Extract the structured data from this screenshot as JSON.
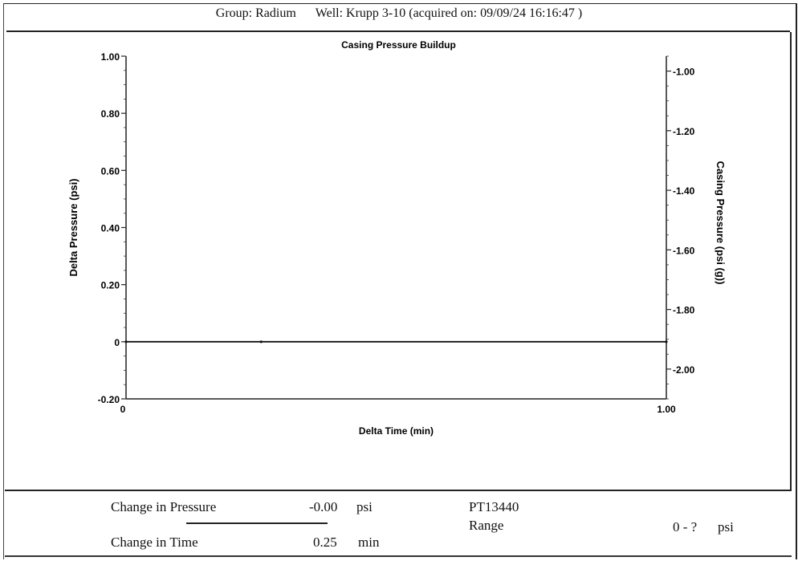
{
  "header": {
    "group": "Group: Radium",
    "well": "Well: Krupp 3-10 (acquired on: 09/09/24 16:16:47 )"
  },
  "chart_data": {
    "type": "line",
    "title": "Casing Pressure Buildup",
    "xlabel": "Delta Time (min)",
    "ylabel": "Delta Pressure (psi)",
    "y2label": "Casing Pressure (psi (g))",
    "xlim": [
      0,
      1.0
    ],
    "ylim": [
      -0.2,
      1.0
    ],
    "y2lim": [
      -2.1,
      -0.95
    ],
    "x_ticks": [
      "0",
      "1.00"
    ],
    "y_ticks": [
      {
        "value": 1.0,
        "label": "1.00"
      },
      {
        "value": 0.8,
        "label": "0.80"
      },
      {
        "value": 0.6,
        "label": "0.60"
      },
      {
        "value": 0.4,
        "label": "0.40"
      },
      {
        "value": 0.2,
        "label": "0.20"
      },
      {
        "value": 0.0,
        "label": "0"
      },
      {
        "value": -0.2,
        "label": "-0.20"
      }
    ],
    "y2_ticks": [
      {
        "value": -1.0,
        "label": "-1.00"
      },
      {
        "value": -1.2,
        "label": "-1.20"
      },
      {
        "value": -1.4,
        "label": "-1.40"
      },
      {
        "value": -1.6,
        "label": "-1.60"
      },
      {
        "value": -1.8,
        "label": "-1.80"
      },
      {
        "value": -2.0,
        "label": "-2.00"
      }
    ],
    "series": [
      {
        "axis": "left",
        "color": "#111111",
        "x": [
          0,
          0.25,
          1.0
        ],
        "y": [
          0,
          0,
          0
        ]
      }
    ],
    "grid": false
  },
  "footer": {
    "pressure_label": "Change in Pressure",
    "pressure_value": "-0.00",
    "pressure_unit": "psi",
    "time_label": "Change in Time",
    "time_value": "0.25",
    "time_unit": "min",
    "gauge_id": "PT13440",
    "range_label": "Range",
    "range_value": "0 - ?",
    "range_unit": "psi"
  }
}
